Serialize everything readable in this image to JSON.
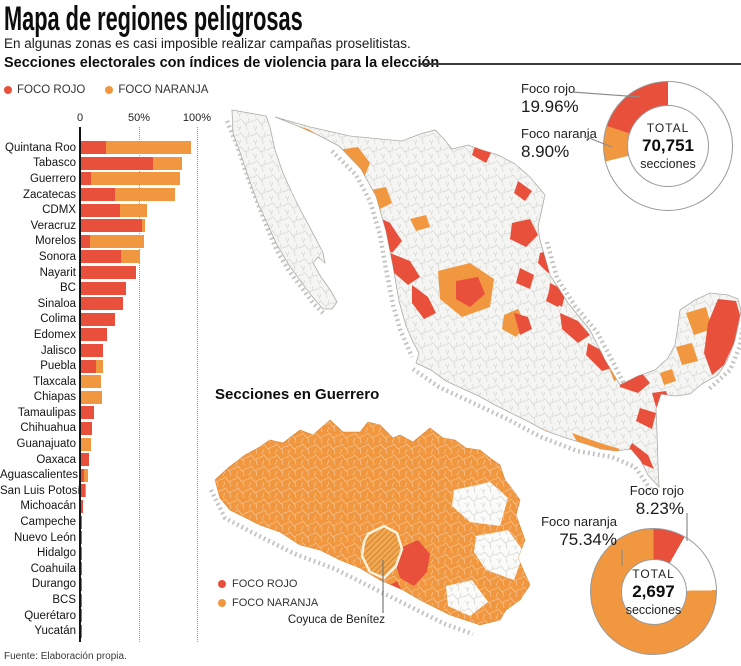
{
  "header": {
    "title": "Mapa de regiones peligrosas",
    "subtitle": "En algunas zonas es casi imposible realizar campañas proselitistas."
  },
  "section_heading": "Secciones electorales con índices de violencia para la elección",
  "legend": {
    "rojo": "FOCO ROJO",
    "naranja": "FOCO NARANJA"
  },
  "colors": {
    "rojo": "#e8503b",
    "naranja": "#f0973f"
  },
  "chart_data": {
    "type": "bar",
    "orientation": "horizontal",
    "stacked": true,
    "unit": "%",
    "xlim": [
      0,
      100
    ],
    "xticks": [
      "0",
      "50%",
      "100%"
    ],
    "grid": "dotted-vertical",
    "categories": [
      "Quintana Roo",
      "Tabasco",
      "Guerrero",
      "Zacatecas",
      "CDMX",
      "Veracruz",
      "Morelos",
      "Sonora",
      "Nayarit",
      "BC",
      "Sinaloa",
      "Colima",
      "Edomex",
      "Jalisco",
      "Puebla",
      "Tlaxcala",
      "Chiapas",
      "Tamaulipas",
      "Chihuahua",
      "Guanajuato",
      "Oaxaca",
      "Aguascalientes",
      "San Luis Potosí",
      "Michoacán",
      "Campeche",
      "Nuevo León",
      "Hidalgo",
      "Coahuila",
      "Durango",
      "BCS",
      "Querétaro",
      "Yucatán"
    ],
    "series": [
      {
        "name": "Foco rojo",
        "color": "#e8503b",
        "values": [
          21,
          61,
          8.2,
          28.5,
          33,
          52,
          8,
          34,
          46.5,
          38.5,
          36,
          28.5,
          22.3,
          18.6,
          13,
          0,
          0,
          11,
          9.3,
          0,
          6.5,
          2.5,
          3.5,
          2,
          1.2,
          0.5,
          0.4,
          0.3,
          0.3,
          0.2,
          0.2,
          0.1
        ]
      },
      {
        "name": "Foco naranja",
        "color": "#f0973f",
        "values": [
          72,
          25,
          75.3,
          51,
          23,
          2,
          45,
          16,
          0,
          0,
          0,
          0,
          0,
          0,
          5.6,
          17.2,
          18.1,
          0,
          0,
          8.2,
          0,
          3.5,
          0.8,
          0,
          0,
          0,
          0,
          0,
          0,
          0,
          0,
          0
        ]
      }
    ]
  },
  "donut_national": {
    "labels": {
      "rojo_name": "Foco rojo",
      "rojo_value": "19.96%",
      "naranja_name": "Foco naranja",
      "naranja_value": "8.90%"
    },
    "center": {
      "label": "TOTAL",
      "value": "70,751",
      "unit": "secciones"
    },
    "slices": {
      "rojo_pct": 19.96,
      "naranja_pct": 8.9
    }
  },
  "guerrero": {
    "heading": "Secciones en Guerrero",
    "legend": {
      "rojo": "FOCO ROJO",
      "naranja": "FOCO NARANJA"
    },
    "callout": "Coyuca de Benítez"
  },
  "donut_guerrero": {
    "labels": {
      "rojo_name": "Foco rojo",
      "rojo_value": "8.23%",
      "naranja_name": "Foco naranja",
      "naranja_value": "75.34%"
    },
    "center": {
      "label": "TOTAL",
      "value": "2,697",
      "unit": "secciones"
    },
    "slices": {
      "rojo_pct": 8.23,
      "naranja_pct": 75.34
    }
  },
  "footer": {
    "source": "Fuente: Elaboración propia."
  }
}
